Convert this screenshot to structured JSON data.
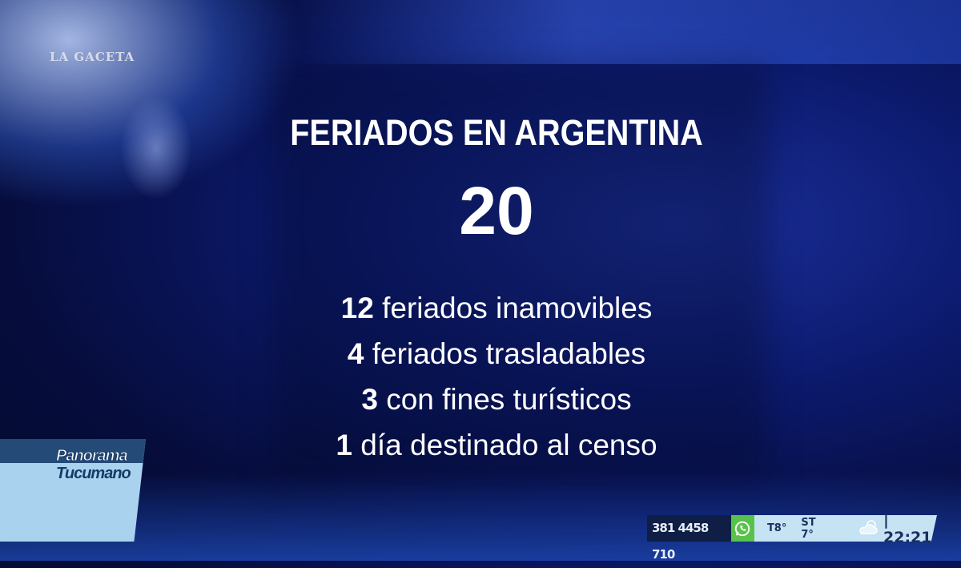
{
  "watermark": "LA GACETA",
  "graphic": {
    "title": "FERIADOS EN ARGENTINA",
    "total": "20",
    "items": [
      {
        "number": "12",
        "text": " feriados inamovibles"
      },
      {
        "number": "4",
        "text": " feriados trasladables"
      },
      {
        "number": "3",
        "text": " con fines turísticos"
      },
      {
        "number": "1",
        "text": " día destinado al censo"
      }
    ]
  },
  "show_logo": {
    "line1": "Panorama",
    "line2": "Tucumano"
  },
  "ticker": {
    "phone": "381 4458 710",
    "phone_icon": "whatsapp-icon",
    "temperature": "T8°",
    "feels_like": "ST 7°",
    "weather_icon": "cloudy-icon",
    "time": "| 22:21",
    "colors": {
      "phone_bg": "#0e1e44",
      "whatsapp": "#58c34a",
      "bar": "#c6e3f4"
    }
  }
}
